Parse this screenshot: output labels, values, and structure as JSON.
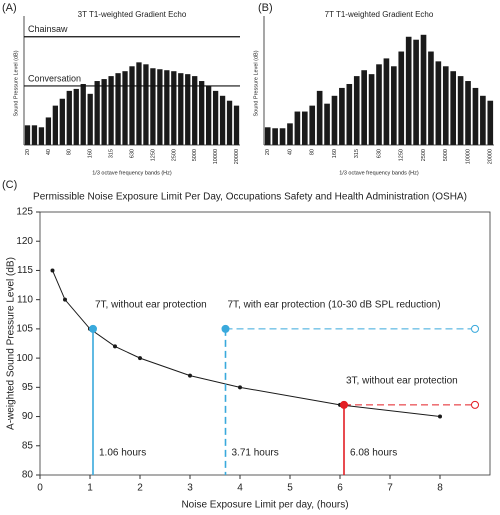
{
  "chart_data": [
    {
      "type": "bar",
      "label": "(A)",
      "title": "3T T1-weighted Gradient Echo",
      "ylabel": "Sound Pressure Level (dB)",
      "xlabel": "1/3 octave frequency bands (Hz)",
      "categories": [
        "20",
        null,
        null,
        "40",
        null,
        null,
        "80",
        null,
        null,
        "160",
        null,
        null,
        "315",
        null,
        null,
        "630",
        null,
        null,
        "1250",
        null,
        null,
        "2500",
        null,
        null,
        "5000",
        null,
        null,
        "10000",
        null,
        null,
        "20000"
      ],
      "values": [
        20,
        20,
        18,
        28,
        40,
        47,
        55,
        57,
        62,
        52,
        65,
        67,
        70,
        73,
        75,
        80,
        84,
        82,
        78,
        77,
        76,
        75,
        73,
        72,
        70,
        65,
        60,
        55,
        50,
        45,
        40
      ],
      "color": "#1a1a1a",
      "ylim": [
        0,
        125
      ],
      "reference_lines": [
        {
          "name": "Chainsaw",
          "value": 110
        },
        {
          "name": "Conversation",
          "value": 60
        }
      ]
    },
    {
      "type": "bar",
      "label": "(B)",
      "title": "7T T1-weighted Gradient Echo",
      "ylabel": "Sound Pressure Level (dB)",
      "xlabel": "1/3 octave frequency bands (Hz)",
      "categories": [
        "20",
        null,
        null,
        "40",
        null,
        null,
        "80",
        null,
        null,
        "160",
        null,
        null,
        "315",
        null,
        null,
        "630",
        null,
        null,
        "1250",
        null,
        null,
        "2500",
        null,
        null,
        "5000",
        null,
        null,
        "10000",
        null,
        null,
        "20000"
      ],
      "values": [
        18,
        17,
        17,
        22,
        34,
        34,
        40,
        55,
        42,
        50,
        58,
        62,
        70,
        76,
        72,
        82,
        88,
        80,
        95,
        110,
        107,
        112,
        95,
        85,
        80,
        75,
        70,
        65,
        58,
        50,
        45
      ],
      "color": "#1a1a1a",
      "ylim": [
        0,
        125
      ]
    },
    {
      "type": "line",
      "label": "(C)",
      "title": "Permissible Noise Exposure Limit Per Day, Occupations Safety and Health Administration (OSHA)",
      "ylabel": "A-weighted Sound Pressure Level (dB)",
      "xlabel": "Noise Exposure Limit per day, (hours)",
      "x": [
        0.25,
        0.5,
        1,
        1.5,
        2,
        3,
        4,
        6,
        8
      ],
      "values": [
        115,
        110,
        105,
        102,
        100,
        97,
        95,
        92,
        90
      ],
      "color": "#1a1a1a",
      "xlim": [
        0,
        9
      ],
      "ylim": [
        80,
        125
      ],
      "xticks": [
        0,
        1,
        2,
        3,
        4,
        5,
        6,
        7,
        8
      ],
      "yticks": [
        80,
        85,
        90,
        95,
        100,
        105,
        110,
        115,
        120,
        125
      ],
      "markers": [
        {
          "label": "7T, without ear protection",
          "hours_label": "1.06 hours",
          "x": 1.06,
          "y": 105,
          "color": "#39a9dc",
          "vertical_dashed": false
        },
        {
          "label": "7T, with ear protection (10-30 dB SPL reduction)",
          "hours_label": "3.71 hours",
          "x": 3.71,
          "y": 105,
          "color": "#39a9dc",
          "vertical_dashed": true,
          "extend_to": 8.7
        },
        {
          "label": "3T, without ear protection",
          "hours_label": "6.08 hours",
          "x": 6.08,
          "y": 92,
          "color": "#e31e24",
          "vertical_dashed": false,
          "extend_to": 8.7
        }
      ]
    }
  ]
}
